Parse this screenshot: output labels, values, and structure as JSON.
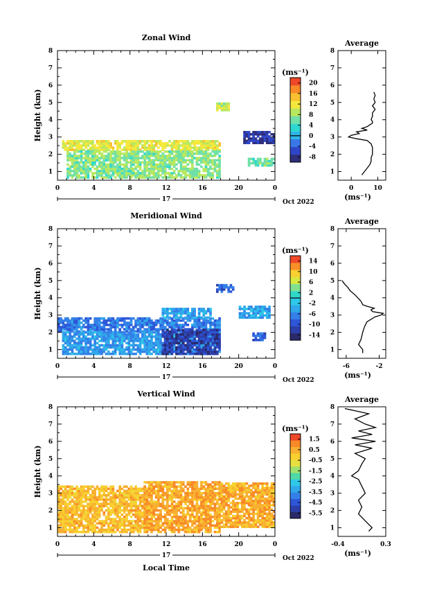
{
  "colors": {
    "zonal": [
      "#2e2e7a",
      "#2f46c8",
      "#3a78e8",
      "#2eb6e8",
      "#2ed8d0",
      "#70e0a8",
      "#b8e860",
      "#f4e83c",
      "#f8c030",
      "#f88a28",
      "#f04828"
    ],
    "meridional": [
      "#2a2a6a",
      "#2c3ea8",
      "#2e56d8",
      "#3480e8",
      "#30a8ea",
      "#2ec8e8",
      "#30d8c8",
      "#80e090",
      "#d8e840",
      "#f8d030",
      "#f89028",
      "#f04828"
    ],
    "vertical": [
      "#2a2a6a",
      "#2c3ea8",
      "#2e56d8",
      "#3480e8",
      "#30a8ea",
      "#2ec8e8",
      "#50d8a8",
      "#a0e070",
      "#e8e040",
      "#f8d030",
      "#f8b030",
      "#f88a28",
      "#f04828"
    ]
  },
  "chart_data": [
    {
      "id": "zonal",
      "type": "heatmap",
      "title": "Zonal Wind",
      "ylabel": "Height (km)",
      "xlim": [
        0,
        24
      ],
      "ylim": [
        0.5,
        8
      ],
      "xticks": [
        "0",
        "4",
        "8",
        "12",
        "16",
        "20",
        "0"
      ],
      "yticks": [
        "1",
        "2",
        "3",
        "4",
        "5",
        "6",
        "7",
        "8"
      ],
      "date_center": "17",
      "date_label": "Oct 2022",
      "colorbar": {
        "unit": "(ms⁻¹)",
        "ticks": [
          "20",
          "16",
          "12",
          "8",
          "4",
          "0",
          "-4",
          "-8"
        ],
        "vmin": -10,
        "vmax": 22,
        "zero_line": 0
      },
      "regions": [
        {
          "x0": 0.5,
          "x1": 18.0,
          "y0": 2.2,
          "y1": 2.8,
          "value": 11
        },
        {
          "x0": 1.0,
          "x1": 18.0,
          "y0": 0.6,
          "y1": 2.2,
          "value": 7
        },
        {
          "x0": 17.5,
          "x1": 19.0,
          "y0": 4.5,
          "y1": 4.9,
          "value": 10
        },
        {
          "x0": 20.5,
          "x1": 24.0,
          "y0": 2.6,
          "y1": 3.3,
          "value": -8
        },
        {
          "x0": 21.0,
          "x1": 24.0,
          "y0": 1.3,
          "y1": 1.8,
          "value": 6
        }
      ],
      "profile": {
        "title": "Average",
        "xlabel": "(ms⁻¹)",
        "xlim": [
          -5,
          13
        ],
        "xticks": [
          "0",
          "10"
        ],
        "height": [
          0.8,
          1.0,
          1.2,
          1.4,
          1.6,
          1.8,
          2.0,
          2.2,
          2.4,
          2.6,
          2.8,
          2.9,
          3.0,
          3.1,
          3.2,
          3.3,
          3.4,
          3.5,
          3.6,
          3.7,
          3.8,
          3.9,
          4.0,
          4.2,
          4.4,
          4.6,
          4.8,
          5.0,
          5.2,
          5.4,
          5.6
        ],
        "value": [
          4,
          5,
          6,
          7,
          7.5,
          7.5,
          8,
          8,
          8,
          7.5,
          6,
          2,
          -1,
          0,
          3,
          2,
          6,
          4,
          6,
          7,
          8,
          8,
          7.5,
          8,
          8,
          9,
          8,
          9,
          8.5,
          9,
          8.5
        ]
      }
    },
    {
      "id": "meridional",
      "type": "heatmap",
      "title": "Meridional Wind",
      "ylabel": "Height (km)",
      "xlim": [
        0,
        24
      ],
      "ylim": [
        0.5,
        8
      ],
      "xticks": [
        "0",
        "4",
        "8",
        "12",
        "16",
        "20",
        "0"
      ],
      "yticks": [
        "1",
        "2",
        "3",
        "4",
        "5",
        "6",
        "7",
        "8"
      ],
      "date_center": "17",
      "date_label": "Oct 2022",
      "colorbar": {
        "unit": "(ms⁻¹)",
        "ticks": [
          "14",
          "10",
          "6",
          "2",
          "-2",
          "-6",
          "-10",
          "-14"
        ],
        "vmin": -16,
        "vmax": 16,
        "zero_line": 0
      },
      "regions": [
        {
          "x0": 0,
          "x1": 18.0,
          "y0": 2.0,
          "y1": 2.8,
          "value": -7
        },
        {
          "x0": 0.5,
          "x1": 18.0,
          "y0": 0.7,
          "y1": 2.0,
          "value": -5
        },
        {
          "x0": 11.5,
          "x1": 18.0,
          "y0": 0.7,
          "y1": 2.2,
          "value": -12
        },
        {
          "x0": 11.5,
          "x1": 17.0,
          "y0": 2.8,
          "y1": 3.4,
          "value": -4
        },
        {
          "x0": 17.5,
          "x1": 19.5,
          "y0": 4.3,
          "y1": 4.7,
          "value": -9
        },
        {
          "x0": 20.0,
          "x1": 23.5,
          "y0": 2.8,
          "y1": 3.5,
          "value": -4
        },
        {
          "x0": 21.5,
          "x1": 23.0,
          "y0": 1.5,
          "y1": 2.0,
          "value": -9
        }
      ],
      "profile": {
        "title": "Average",
        "xlabel": "(ms⁻¹)",
        "xlim": [
          -7,
          -1.2
        ],
        "xticks": [
          "-6",
          "-2"
        ],
        "height": [
          0.8,
          1.0,
          1.3,
          1.6,
          2.0,
          2.3,
          2.6,
          2.9,
          3.0,
          3.1,
          3.2,
          3.3,
          3.4,
          3.5,
          3.6,
          3.8,
          4.0,
          4.2,
          4.4,
          4.6,
          4.8,
          5.0
        ],
        "value": [
          -4,
          -4,
          -4.5,
          -4.2,
          -4,
          -3.8,
          -3.5,
          -2.5,
          -1.8,
          -1.5,
          -2.8,
          -3,
          -2.6,
          -3.4,
          -4,
          -4.2,
          -4.6,
          -5,
          -5.5,
          -5.8,
          -6.2,
          -6.5
        ]
      }
    },
    {
      "id": "vertical",
      "type": "heatmap",
      "title": "Vertical Wind",
      "ylabel": "Height (km)",
      "xlabel": "Local Time",
      "xlim": [
        0,
        24
      ],
      "ylim": [
        0.5,
        8
      ],
      "xticks": [
        "0",
        "4",
        "8",
        "12",
        "16",
        "20",
        "0"
      ],
      "yticks": [
        "1",
        "2",
        "3",
        "4",
        "5",
        "6",
        "7",
        "8"
      ],
      "date_center": "17",
      "date_label": "Oct 2022",
      "colorbar": {
        "unit": "(ms⁻¹)",
        "ticks": [
          "1.5",
          "0.5",
          "-0.5",
          "-1.5",
          "-2.5",
          "-3.5",
          "-4.5",
          "-5.5"
        ],
        "vmin": -6,
        "vmax": 2,
        "zero_line": null
      },
      "regions": [
        {
          "x0": 0,
          "x1": 10.0,
          "y0": 0.7,
          "y1": 3.4,
          "value": 0.2
        },
        {
          "x0": 9.5,
          "x1": 18.0,
          "y0": 0.7,
          "y1": 3.6,
          "value": 0.6
        },
        {
          "x0": 18.0,
          "x1": 24.0,
          "y0": 1.0,
          "y1": 3.6,
          "value": 0.5
        }
      ],
      "profile": {
        "title": "Average",
        "xlabel": "(ms⁻¹)",
        "xlim": [
          -0.4,
          0.3
        ],
        "xticks": [
          "-0.4",
          "0.3"
        ],
        "height": [
          0.8,
          1.0,
          1.4,
          1.8,
          2.2,
          2.6,
          3.0,
          3.4,
          3.8,
          4.0,
          4.3,
          4.7,
          5.0,
          5.3,
          5.6,
          5.8,
          6.0,
          6.2,
          6.4,
          6.6,
          6.8,
          7.0,
          7.3,
          7.6,
          7.9
        ],
        "value": [
          0.05,
          0.1,
          0.0,
          -0.1,
          -0.05,
          -0.1,
          0.0,
          -0.05,
          -0.1,
          -0.2,
          -0.1,
          -0.05,
          0.0,
          -0.15,
          0.1,
          -0.15,
          0.15,
          -0.2,
          0.1,
          -0.1,
          0.15,
          0.0,
          -0.15,
          0.05,
          -0.3
        ]
      }
    }
  ]
}
